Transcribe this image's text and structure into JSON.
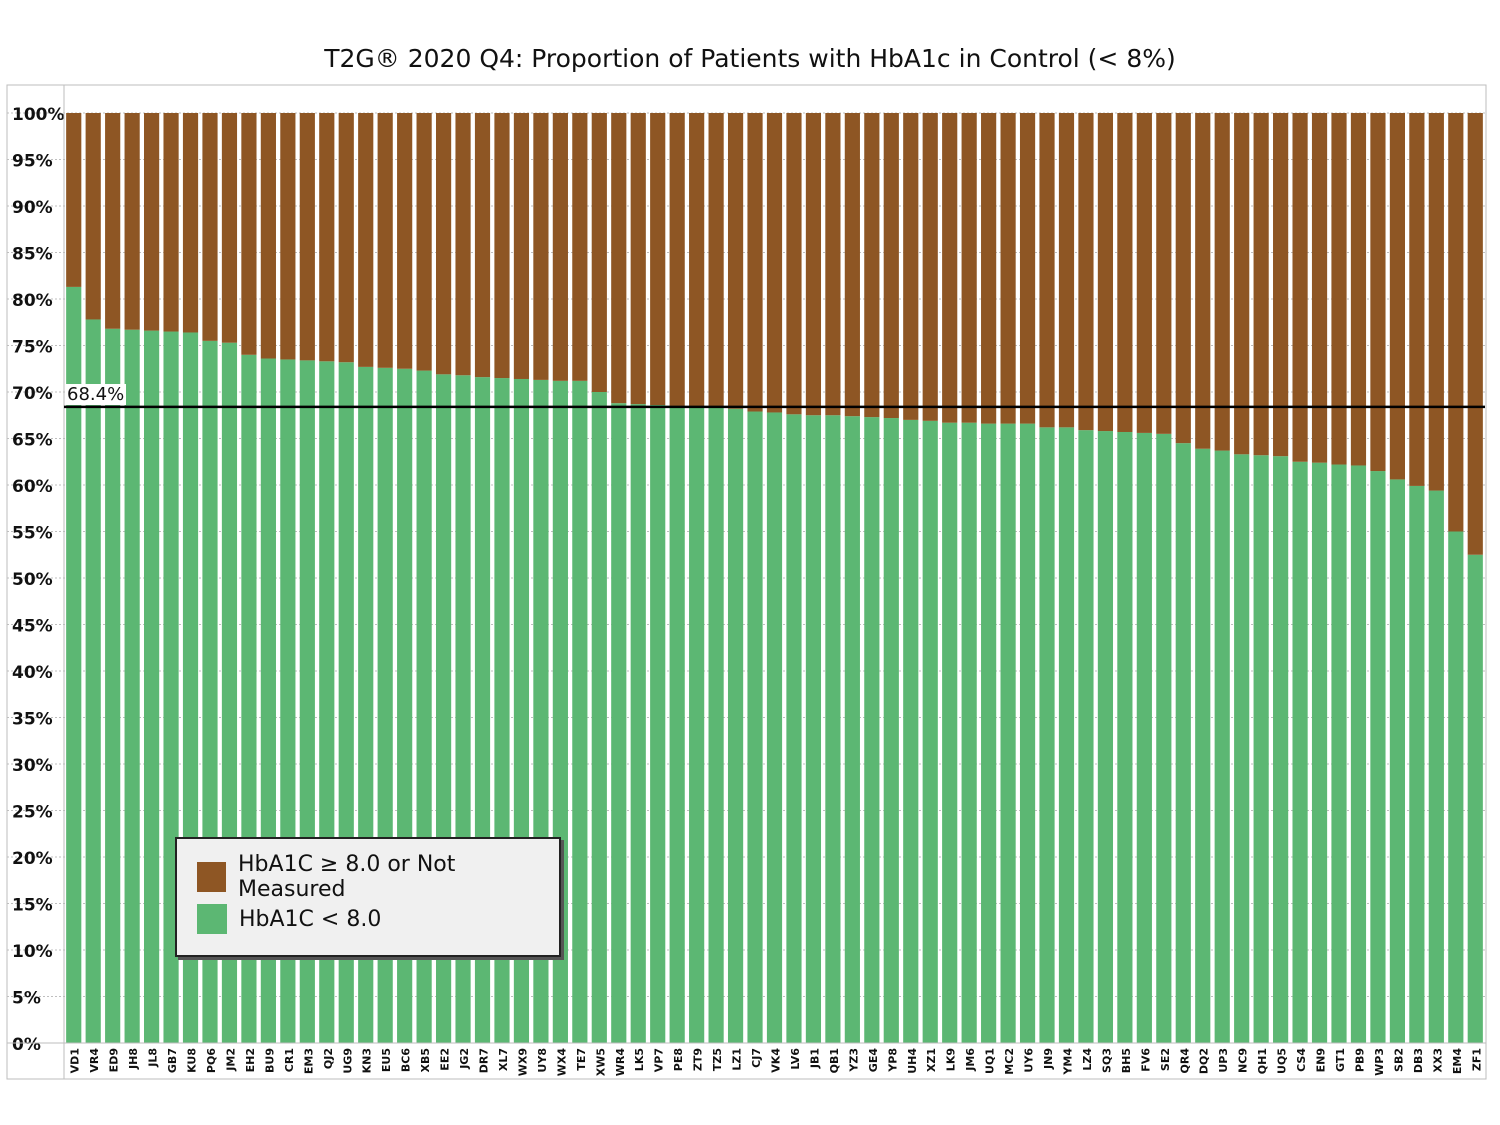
{
  "colors": {
    "above": "#8e5624",
    "below": "#5cb773",
    "refline": "#000000",
    "grid": "#bfbfbf"
  },
  "chart_data": {
    "type": "bar",
    "stacked": true,
    "title": "T2G® 2020 Q4: Proportion of Patients with HbA1c in Control (< 8%)",
    "xlabel": "",
    "ylabel": "",
    "ylim": [
      0,
      100
    ],
    "yticks": [
      "0%",
      "5%",
      "10%",
      "15%",
      "20%",
      "25%",
      "30%",
      "35%",
      "40%",
      "45%",
      "50%",
      "55%",
      "60%",
      "65%",
      "70%",
      "75%",
      "80%",
      "85%",
      "90%",
      "95%",
      "100%"
    ],
    "categories": [
      "VD1",
      "VR4",
      "ED9",
      "JH8",
      "JL8",
      "GB7",
      "KU8",
      "PQ6",
      "JM2",
      "EH2",
      "BU9",
      "CR1",
      "EM3",
      "QJ2",
      "UG9",
      "KN3",
      "EU5",
      "BC6",
      "XB5",
      "EE2",
      "JG2",
      "DR7",
      "XL7",
      "WX9",
      "UY8",
      "WX4",
      "TE7",
      "XW5",
      "WR4",
      "LK5",
      "VP7",
      "PE8",
      "ZT9",
      "TZ5",
      "LZ1",
      "CJ7",
      "VK4",
      "LV6",
      "JB1",
      "QB1",
      "YZ3",
      "GE4",
      "YP8",
      "UH4",
      "XZ1",
      "LK9",
      "JM6",
      "UQ1",
      "MC2",
      "UY6",
      "JN9",
      "YM4",
      "LZ4",
      "SQ3",
      "BH5",
      "FV6",
      "SE2",
      "QR4",
      "DQ2",
      "UP3",
      "NC9",
      "QH1",
      "UQ5",
      "CS4",
      "EN9",
      "GT1",
      "PB9",
      "WP3",
      "SB2",
      "DB3",
      "XX3",
      "EM4",
      "ZF1"
    ],
    "series": [
      {
        "name": "HbA1C < 8.0",
        "values": [
          81.3,
          77.8,
          76.8,
          76.7,
          76.6,
          76.5,
          76.4,
          75.5,
          75.3,
          74.0,
          73.6,
          73.5,
          73.4,
          73.3,
          73.2,
          72.7,
          72.6,
          72.5,
          72.3,
          71.9,
          71.8,
          71.6,
          71.5,
          71.4,
          71.3,
          71.2,
          71.2,
          70.0,
          68.8,
          68.7,
          68.6,
          68.5,
          68.4,
          68.3,
          68.2,
          67.9,
          67.8,
          67.6,
          67.5,
          67.5,
          67.4,
          67.3,
          67.2,
          67.0,
          66.9,
          66.7,
          66.7,
          66.6,
          66.6,
          66.6,
          66.2,
          66.2,
          65.9,
          65.8,
          65.7,
          65.6,
          65.5,
          64.5,
          63.9,
          63.7,
          63.3,
          63.2,
          63.1,
          62.5,
          62.4,
          62.2,
          62.1,
          61.5,
          60.6,
          59.9,
          59.4,
          55.0,
          52.5
        ]
      },
      {
        "name": "HbA1C ≥ 8.0 or Not Measured",
        "values": [
          18.7,
          22.2,
          23.2,
          23.3,
          23.4,
          23.5,
          23.6,
          24.5,
          24.7,
          26.0,
          26.4,
          26.5,
          26.6,
          26.7,
          26.8,
          27.3,
          27.4,
          27.5,
          27.7,
          28.1,
          28.2,
          28.4,
          28.5,
          28.6,
          28.7,
          28.8,
          28.8,
          30.0,
          31.2,
          31.3,
          31.4,
          31.5,
          31.6,
          31.7,
          31.8,
          32.1,
          32.2,
          32.4,
          32.5,
          32.5,
          32.6,
          32.7,
          32.8,
          33.0,
          33.1,
          33.3,
          33.3,
          33.4,
          33.4,
          33.4,
          33.8,
          33.8,
          34.1,
          34.2,
          34.3,
          34.4,
          34.5,
          35.5,
          36.1,
          36.3,
          36.7,
          36.8,
          36.9,
          37.5,
          37.6,
          37.8,
          37.9,
          38.5,
          39.4,
          40.1,
          40.6,
          45.0,
          47.5
        ]
      }
    ],
    "reference_line": {
      "value": 68.4,
      "label": "68.4%"
    },
    "legend": {
      "placement": "bottom-left",
      "items": [
        "HbA1C ≥ 8.0 or Not Measured",
        "HbA1C < 8.0"
      ]
    },
    "grid": true
  }
}
